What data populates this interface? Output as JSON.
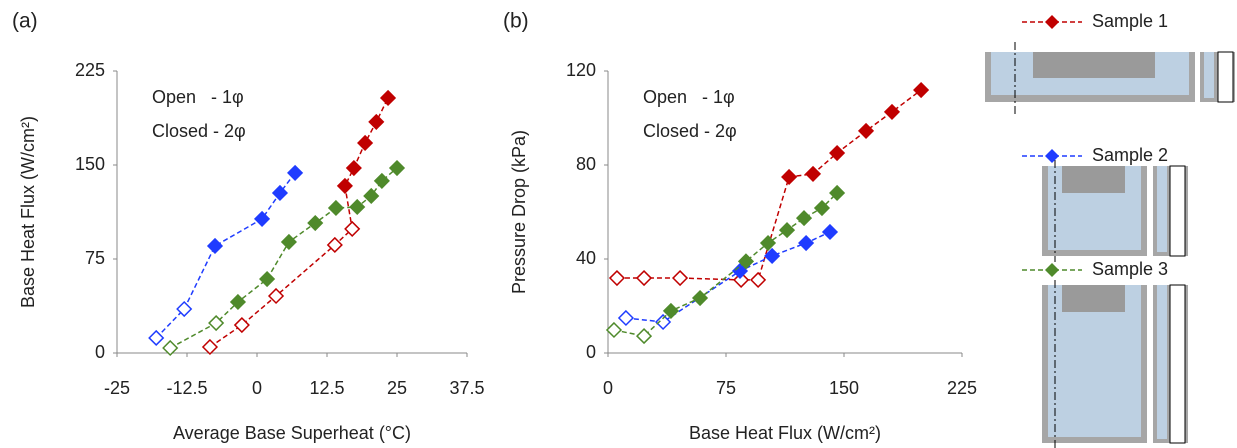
{
  "chart_data": [
    {
      "type": "line",
      "label": "(a)",
      "x_label": "Average Base Superheat (°C)",
      "y_label": "Base Heat Flux (W/cm²)",
      "annotations": [
        "Open   - 1φ",
        "Closed - 2φ"
      ],
      "xlim": [
        -25,
        37.5
      ],
      "xticks": [
        -25,
        -12.5,
        0,
        12.5,
        25,
        37.5
      ],
      "ylim": [
        0,
        225
      ],
      "yticks": [
        0,
        75,
        150,
        225
      ],
      "grid": false,
      "legend": "right",
      "series": [
        {
          "name": "Sample 1",
          "color": "#c00000",
          "x": [
            -8.4,
            -2.7,
            3.4,
            13.9,
            17.0,
            15.7,
            17.3,
            19.3,
            21.3,
            23.4
          ],
          "values": [
            4.8,
            22.3,
            45.5,
            86.2,
            99,
            133.3,
            147.6,
            167.6,
            184.4,
            203.5
          ],
          "filled": [
            false,
            false,
            false,
            false,
            false,
            true,
            true,
            true,
            true,
            true
          ]
        },
        {
          "name": "Sample 2",
          "color": "#1f3cff",
          "x": [
            -18.0,
            -13.0,
            -7.5,
            0.9,
            4.1,
            6.8
          ],
          "values": [
            12,
            35.1,
            85.4,
            107,
            127.7,
            143.7
          ],
          "filled": [
            false,
            false,
            true,
            true,
            true,
            true
          ]
        },
        {
          "name": "Sample 3",
          "color": "#4f8a2b",
          "x": [
            -15.5,
            -7.3,
            -3.4,
            1.8,
            5.7,
            10.4,
            14.1,
            17.9,
            20.4,
            22.3,
            25.0
          ],
          "values": [
            4,
            23.9,
            40.7,
            59,
            88.6,
            103.7,
            115.7,
            116.5,
            125.3,
            137.3,
            147.6
          ],
          "filled": [
            false,
            false,
            true,
            true,
            true,
            true,
            true,
            true,
            true,
            true,
            true
          ]
        }
      ]
    },
    {
      "type": "line",
      "label": "(b)",
      "x_label": "Base Heat Flux (W/cm²)",
      "y_label": "Pressure Drop (kPa)",
      "annotations": [
        "Open   - 1φ",
        "Closed - 2φ"
      ],
      "xlim": [
        0,
        225
      ],
      "xticks": [
        0,
        75,
        150,
        225
      ],
      "ylim": [
        0,
        120
      ],
      "yticks": [
        0,
        40,
        80,
        120
      ],
      "grid": false,
      "series": [
        {
          "color": "#c00000",
          "x": [
            5.7,
            22.9,
            45.8,
            84.6,
            95.4,
            115.1,
            130.3,
            145.6,
            164,
            180.5,
            199
          ],
          "values": [
            31.9,
            31.9,
            31.9,
            31.1,
            31.1,
            74.9,
            76.2,
            85.1,
            94.5,
            102.6,
            111.9
          ],
          "filled": [
            false,
            false,
            false,
            false,
            false,
            true,
            true,
            true,
            true,
            true,
            true
          ]
        },
        {
          "color": "#1f3cff",
          "x": [
            11.4,
            35,
            83.9,
            104.3,
            125.9,
            141.1
          ],
          "values": [
            14.9,
            13.2,
            34.9,
            41.3,
            46.8,
            51.5
          ],
          "filled": [
            false,
            false,
            true,
            true,
            true,
            true
          ]
        },
        {
          "color": "#4f8a2b",
          "x": [
            3.8,
            22.9,
            40,
            58.5,
            87.7,
            101.7,
            113.8,
            124.6,
            136,
            145.6
          ],
          "values": [
            9.8,
            7.2,
            17.9,
            23.4,
            39,
            46.8,
            52.3,
            57.4,
            61.7,
            68.1
          ],
          "filled": [
            false,
            false,
            true,
            true,
            true,
            true,
            true,
            true,
            true,
            true
          ]
        }
      ]
    }
  ]
}
